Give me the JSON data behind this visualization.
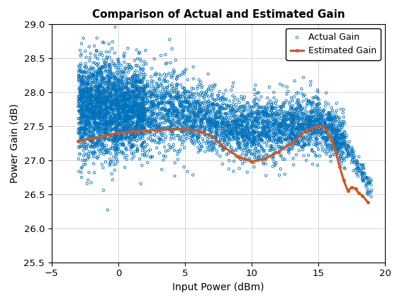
{
  "title": "Comparison of Actual and Estimated Gain",
  "xlabel": "Input Power (dBm)",
  "ylabel": "Power Gain (dB)",
  "xlim": [
    -5,
    20
  ],
  "ylim": [
    25.5,
    29
  ],
  "xticks": [
    -5,
    0,
    5,
    10,
    15,
    20
  ],
  "yticks": [
    25.5,
    26,
    26.5,
    27,
    27.5,
    28,
    28.5,
    29
  ],
  "actual_color": "#0072BD",
  "estimated_color": "#D95319",
  "estimated_x": [
    -3.0,
    -2.0,
    -1.0,
    0.0,
    1.0,
    2.0,
    3.0,
    4.0,
    5.0,
    6.0,
    7.0,
    8.0,
    9.0,
    10.0,
    11.0,
    12.0,
    13.0,
    14.0,
    14.5,
    15.0,
    15.3,
    15.6,
    16.0,
    16.3,
    16.6,
    16.9,
    17.2,
    17.5,
    17.8,
    18.0,
    18.3,
    18.7
  ],
  "estimated_y": [
    27.28,
    27.32,
    27.36,
    27.4,
    27.42,
    27.43,
    27.44,
    27.45,
    27.46,
    27.43,
    27.35,
    27.18,
    27.05,
    26.98,
    27.02,
    27.12,
    27.25,
    27.42,
    27.47,
    27.5,
    27.5,
    27.44,
    27.3,
    27.12,
    26.9,
    26.7,
    26.55,
    26.6,
    26.58,
    26.52,
    26.48,
    26.38
  ],
  "seed": 42,
  "title_fontsize": 11,
  "label_fontsize": 10,
  "tick_fontsize": 9.5,
  "scatter_lw": 0.6,
  "line_width": 2.2,
  "fig_width": 5.6,
  "fig_height": 4.2,
  "dpi": 100
}
